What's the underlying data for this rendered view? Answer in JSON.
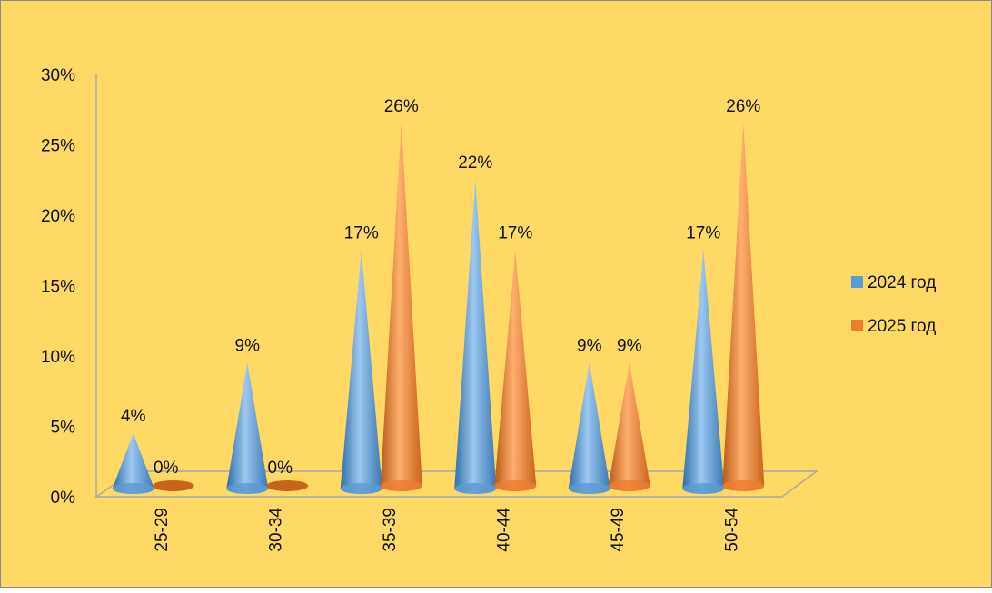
{
  "chart_data": {
    "type": "bar",
    "style": "3d-cones",
    "categories": [
      "25-29",
      "30-34",
      "35-39",
      "40-44",
      "45-49",
      "50-54"
    ],
    "series": [
      {
        "name": "2024 год",
        "values": [
          4,
          9,
          17,
          22,
          9,
          17
        ],
        "labels": [
          "4%",
          "9%",
          "17%",
          "22%",
          "9%",
          "17%"
        ]
      },
      {
        "name": "2025 год",
        "values": [
          0,
          0,
          26,
          17,
          9,
          26
        ],
        "labels": [
          "0%",
          "0%",
          "26%",
          "17%",
          "9%",
          "26%"
        ]
      }
    ],
    "y_ticks": [
      "0%",
      "5%",
      "10%",
      "15%",
      "20%",
      "25%",
      "30%"
    ],
    "ylim": [
      0,
      30
    ],
    "legend_position": "right",
    "colors": {
      "background": "#FFD966",
      "series_2024": "#5B9BD5",
      "series_2025": "#ED7D31",
      "axis": "#A6A6A6"
    }
  }
}
